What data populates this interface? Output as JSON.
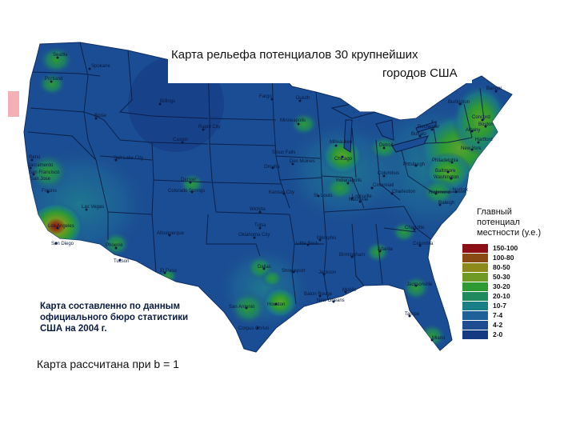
{
  "map": {
    "title_line1": "Карта рельефа потенциалов 30 крупнейших",
    "title_line2": "городов США",
    "legend_title": "Главный потенциал местности (у.е.)",
    "legend": [
      {
        "label": "150-100",
        "color": "#8b0f14"
      },
      {
        "label": "100-80",
        "color": "#8a4a14"
      },
      {
        "label": "80-50",
        "color": "#8c8a1a"
      },
      {
        "label": "50-30",
        "color": "#6f9a24"
      },
      {
        "label": "30-20",
        "color": "#2e9a33"
      },
      {
        "label": "20-10",
        "color": "#1f8a5e"
      },
      {
        "label": "10-7",
        "color": "#1a7e86"
      },
      {
        "label": "7-4",
        "color": "#1f6098"
      },
      {
        "label": "4-2",
        "color": "#1e4d91"
      },
      {
        "label": "2-0",
        "color": "#163a82"
      }
    ],
    "source_note": "Карта составленно по данным официального бюро статистики США на 2004 г.",
    "calc_note": "Карта рассчитана при b = 1",
    "cities": [
      {
        "name": "Seattle"
      },
      {
        "name": "Spokane"
      },
      {
        "name": "Portland"
      },
      {
        "name": "Billings"
      },
      {
        "name": "Fargo"
      },
      {
        "name": "Duluth"
      },
      {
        "name": "Boise"
      },
      {
        "name": "Rapid City"
      },
      {
        "name": "Minneapolis"
      },
      {
        "name": "Casper"
      },
      {
        "name": "Milwaukee"
      },
      {
        "name": "Detroit"
      },
      {
        "name": "Chicago"
      },
      {
        "name": "Reno"
      },
      {
        "name": "Sacramento"
      },
      {
        "name": "San Francisco"
      },
      {
        "name": "San Jose"
      },
      {
        "name": "Salt Lake City"
      },
      {
        "name": "Sioux Falls"
      },
      {
        "name": "Omaha"
      },
      {
        "name": "Des Moines"
      },
      {
        "name": "Fresno"
      },
      {
        "name": "Denver"
      },
      {
        "name": "Colorado Springs"
      },
      {
        "name": "Kansas City"
      },
      {
        "name": "St. Louis"
      },
      {
        "name": "Indianapolis"
      },
      {
        "name": "Columbus"
      },
      {
        "name": "Cincinnati"
      },
      {
        "name": "Louisville"
      },
      {
        "name": "Charleston"
      },
      {
        "name": "Pittsburgh"
      },
      {
        "name": "Las Vegas"
      },
      {
        "name": "Los Angeles"
      },
      {
        "name": "San Diego"
      },
      {
        "name": "Wichita"
      },
      {
        "name": "Tulsa"
      },
      {
        "name": "Oklahoma City"
      },
      {
        "name": "Albuquerque"
      },
      {
        "name": "Phoenix"
      },
      {
        "name": "Tucson"
      },
      {
        "name": "El Paso"
      },
      {
        "name": "Nashville"
      },
      {
        "name": "Charlotte"
      },
      {
        "name": "Memphis"
      },
      {
        "name": "Little Rock"
      },
      {
        "name": "Atlanta"
      },
      {
        "name": "Birmingham"
      },
      {
        "name": "Dallas"
      },
      {
        "name": "Shreveport"
      },
      {
        "name": "Jackson"
      },
      {
        "name": "Mobile"
      },
      {
        "name": "Baton Rouge"
      },
      {
        "name": "New Orleans"
      },
      {
        "name": "Jacksonville"
      },
      {
        "name": "Houston"
      },
      {
        "name": "San Antonio"
      },
      {
        "name": "Corpus Christi"
      },
      {
        "name": "Tampa"
      },
      {
        "name": "Miami"
      },
      {
        "name": "Bangor"
      },
      {
        "name": "Burlington"
      },
      {
        "name": "Concord"
      },
      {
        "name": "Boston"
      },
      {
        "name": "Albany"
      },
      {
        "name": "Rochester"
      },
      {
        "name": "Buffalo"
      },
      {
        "name": "Hartford"
      },
      {
        "name": "New York"
      },
      {
        "name": "Philadelphia"
      },
      {
        "name": "Baltimore"
      },
      {
        "name": "Washington"
      },
      {
        "name": "Richmond"
      },
      {
        "name": "Norfolk"
      },
      {
        "name": "Raleigh"
      },
      {
        "name": "Columbia"
      }
    ]
  }
}
